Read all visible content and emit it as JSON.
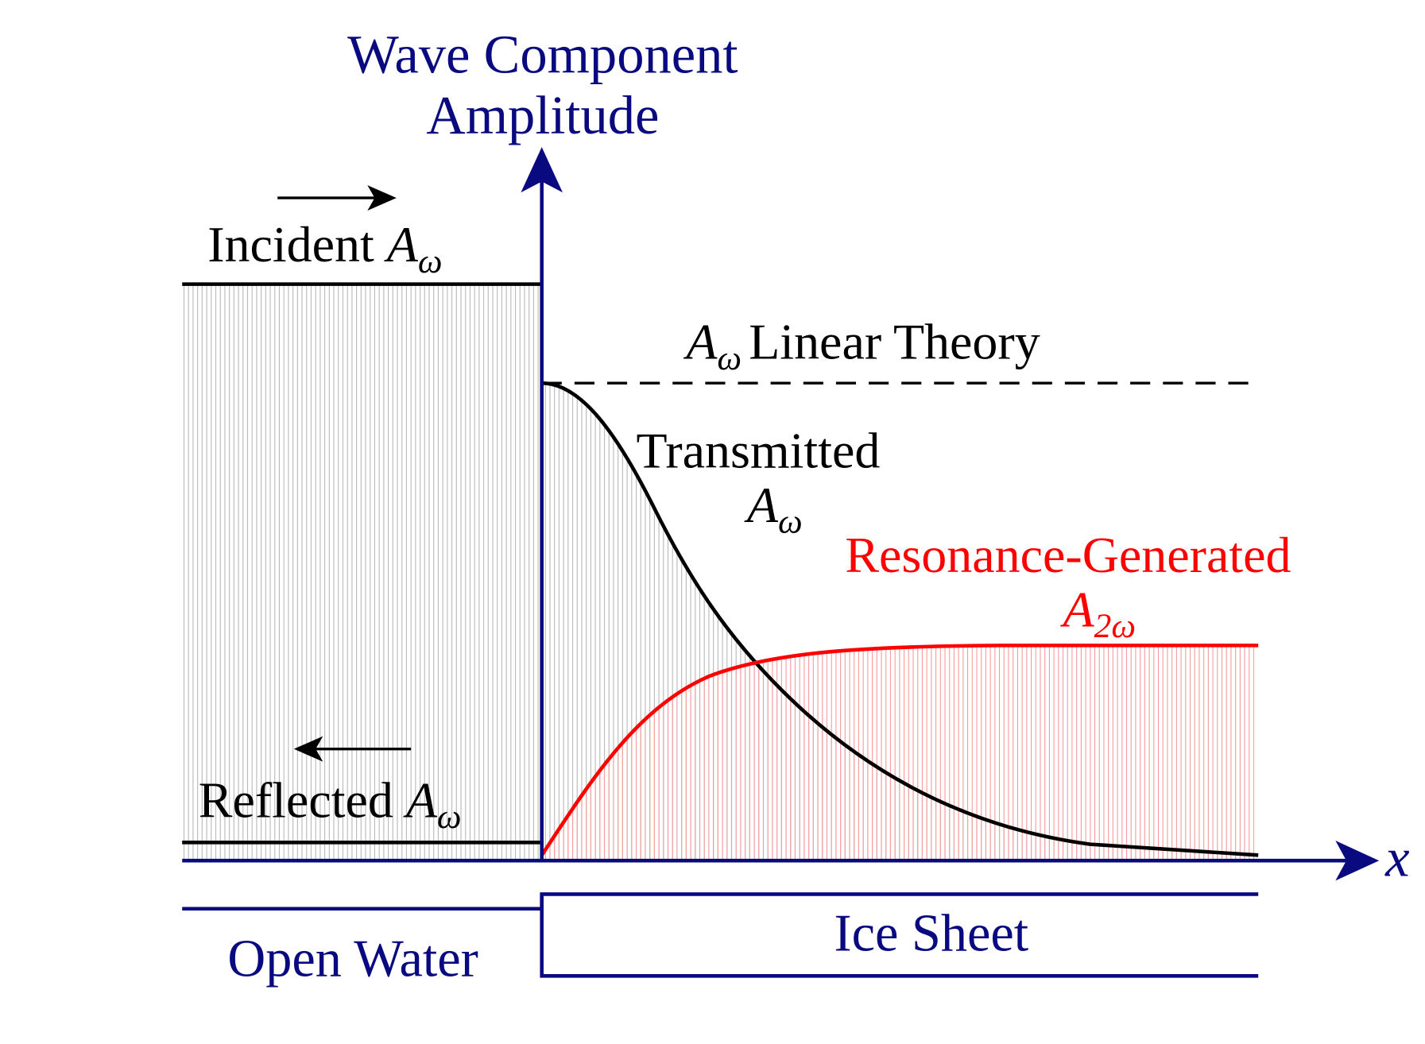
{
  "y_axis": {
    "label_lines": [
      "Wave Component",
      "Amplitude"
    ]
  },
  "x_axis": {
    "label": "x"
  },
  "incident": {
    "text": "Incident",
    "symbol": "A",
    "subscript": "ω"
  },
  "reflected": {
    "text": "Reflected",
    "symbol": "A",
    "subscript": "ω"
  },
  "linear_theory": {
    "symbol": "A",
    "subscript": "ω",
    "text": "Linear Theory"
  },
  "transmitted": {
    "text": "Transmitted",
    "symbol": "A",
    "subscript": "ω"
  },
  "resonance": {
    "text": "Resonance-Generated",
    "symbol": "A",
    "subscript": "2ω"
  },
  "regions": {
    "open_water": "Open Water",
    "ice_sheet": "Ice Sheet"
  }
}
